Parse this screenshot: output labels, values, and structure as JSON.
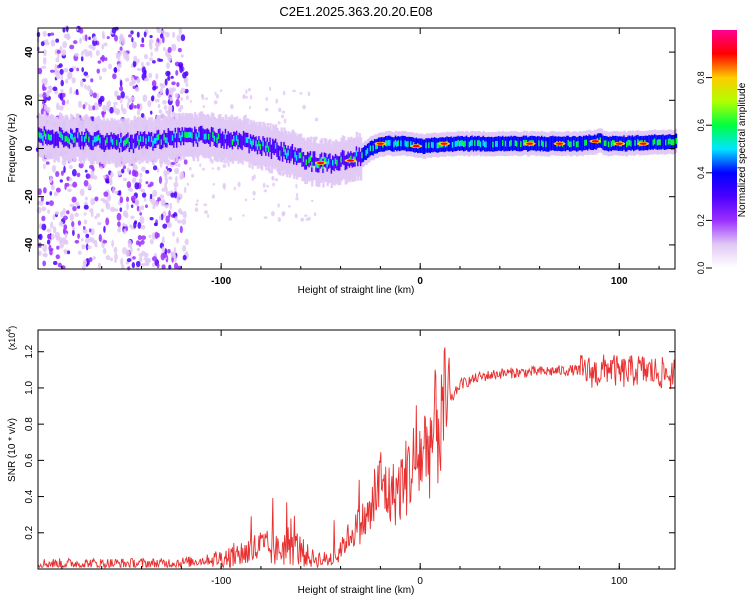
{
  "title": "C2E1.2025.363.20.20.E08",
  "chart_data": [
    {
      "type": "heatmap",
      "xlabel": "Height of straight line (km)",
      "ylabel": "Frequency (Hz)",
      "xlim": [
        -192,
        128
      ],
      "ylim": [
        -50,
        50
      ],
      "x_ticks": [
        -100,
        0,
        100
      ],
      "x_tick_labels": [
        "-100",
        "0",
        "100"
      ],
      "y_ticks": [
        -40,
        -20,
        0,
        20,
        40
      ],
      "y_tick_labels": [
        "-40",
        "-20",
        "0",
        "20",
        "40"
      ],
      "ridge": {
        "x": [
          -192,
          -170,
          -150,
          -130,
          -110,
          -90,
          -75,
          -65,
          -58,
          -50,
          -45,
          -40,
          -35,
          -30,
          -25,
          -20,
          -10,
          0,
          20,
          40,
          60,
          80,
          90,
          95,
          100,
          128
        ],
        "y": [
          5,
          4,
          2,
          4,
          5,
          3,
          0,
          -2,
          -5,
          -6,
          -6,
          -5,
          -4,
          -3,
          0,
          2,
          2,
          1,
          2,
          2,
          2,
          2,
          3,
          2,
          2,
          3
        ]
      },
      "colorbar": {
        "label": "Normalized spectral amplitude",
        "range": [
          0,
          1
        ],
        "ticks": [
          0.0,
          0.2,
          0.4,
          0.6,
          0.8
        ],
        "tick_labels": [
          "0.0",
          "0.2",
          "0.4",
          "0.6",
          "0.8"
        ],
        "colors": [
          "#ffffff",
          "#e0c8f5",
          "#9b30ff",
          "#4b00ff",
          "#0000ff",
          "#00e5ff",
          "#00ff40",
          "#b0ff00",
          "#ffcc00",
          "#ff0000",
          "#ff0090"
        ]
      }
    },
    {
      "type": "line",
      "xlabel": "Height of straight line (km)",
      "ylabel": "SNR (10 * v/v)",
      "y_multiplier": "(x10",
      "y_multiplier_exp": "4",
      "y_multiplier_close": ")",
      "xlim": [
        -192,
        128
      ],
      "ylim": [
        0.0,
        1.32
      ],
      "x_ticks": [
        -100,
        0,
        100
      ],
      "x_tick_labels": [
        "-100",
        "0",
        "100"
      ],
      "y_ticks": [
        0.2,
        0.4,
        0.6,
        0.8,
        1.0,
        1.2
      ],
      "y_tick_labels": [
        "0.2",
        "0.4",
        "0.6",
        "0.8",
        "1.0",
        "1.2"
      ],
      "line_color": "#e83030",
      "series": [
        {
          "name": "SNR",
          "x": [
            -192,
            -170,
            -150,
            -130,
            -115,
            -100,
            -88,
            -80,
            -72,
            -65,
            -55,
            -47,
            -42,
            -36,
            -30,
            -25,
            -20,
            -15,
            -10,
            -5,
            0,
            5,
            10,
            15,
            20,
            30,
            40,
            60,
            80,
            90,
            95,
            100,
            110,
            128
          ],
          "y": [
            0.03,
            0.03,
            0.03,
            0.03,
            0.04,
            0.06,
            0.09,
            0.12,
            0.1,
            0.14,
            0.06,
            0.05,
            0.07,
            0.18,
            0.25,
            0.3,
            0.48,
            0.4,
            0.45,
            0.55,
            0.62,
            0.7,
            0.82,
            0.92,
            1.02,
            1.06,
            1.08,
            1.09,
            1.1,
            1.08,
            1.12,
            1.08,
            1.1,
            1.07
          ]
        }
      ]
    }
  ]
}
